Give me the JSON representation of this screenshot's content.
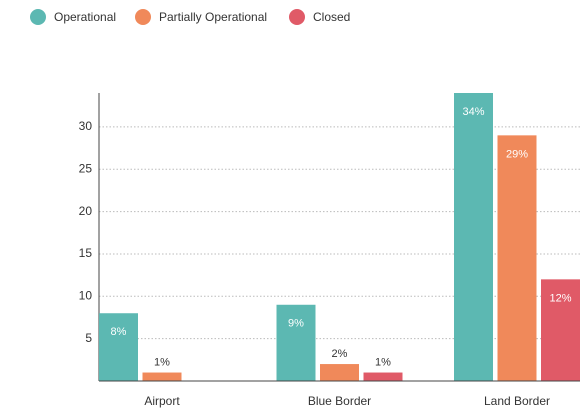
{
  "chart_data": {
    "type": "bar",
    "categories": [
      "Airport",
      "Blue Border",
      "Land Border"
    ],
    "series": [
      {
        "name": "Operational",
        "color": "#5cb8b2",
        "values": [
          8,
          9,
          34
        ],
        "value_labels": [
          "8%",
          "9%",
          "34%"
        ]
      },
      {
        "name": "Partially Operational",
        "color": "#f0895a",
        "values": [
          1,
          2,
          29
        ],
        "value_labels": [
          "1%",
          "2%",
          "29%"
        ]
      },
      {
        "name": "Closed",
        "color": "#e05a67",
        "values": [
          0,
          1,
          12
        ],
        "value_labels": [
          null,
          "1%",
          "12%"
        ]
      }
    ],
    "ylim": [
      0,
      34
    ],
    "yticks": [
      5,
      10,
      15,
      20,
      25,
      30
    ],
    "grid": true,
    "legend": "top-left"
  }
}
